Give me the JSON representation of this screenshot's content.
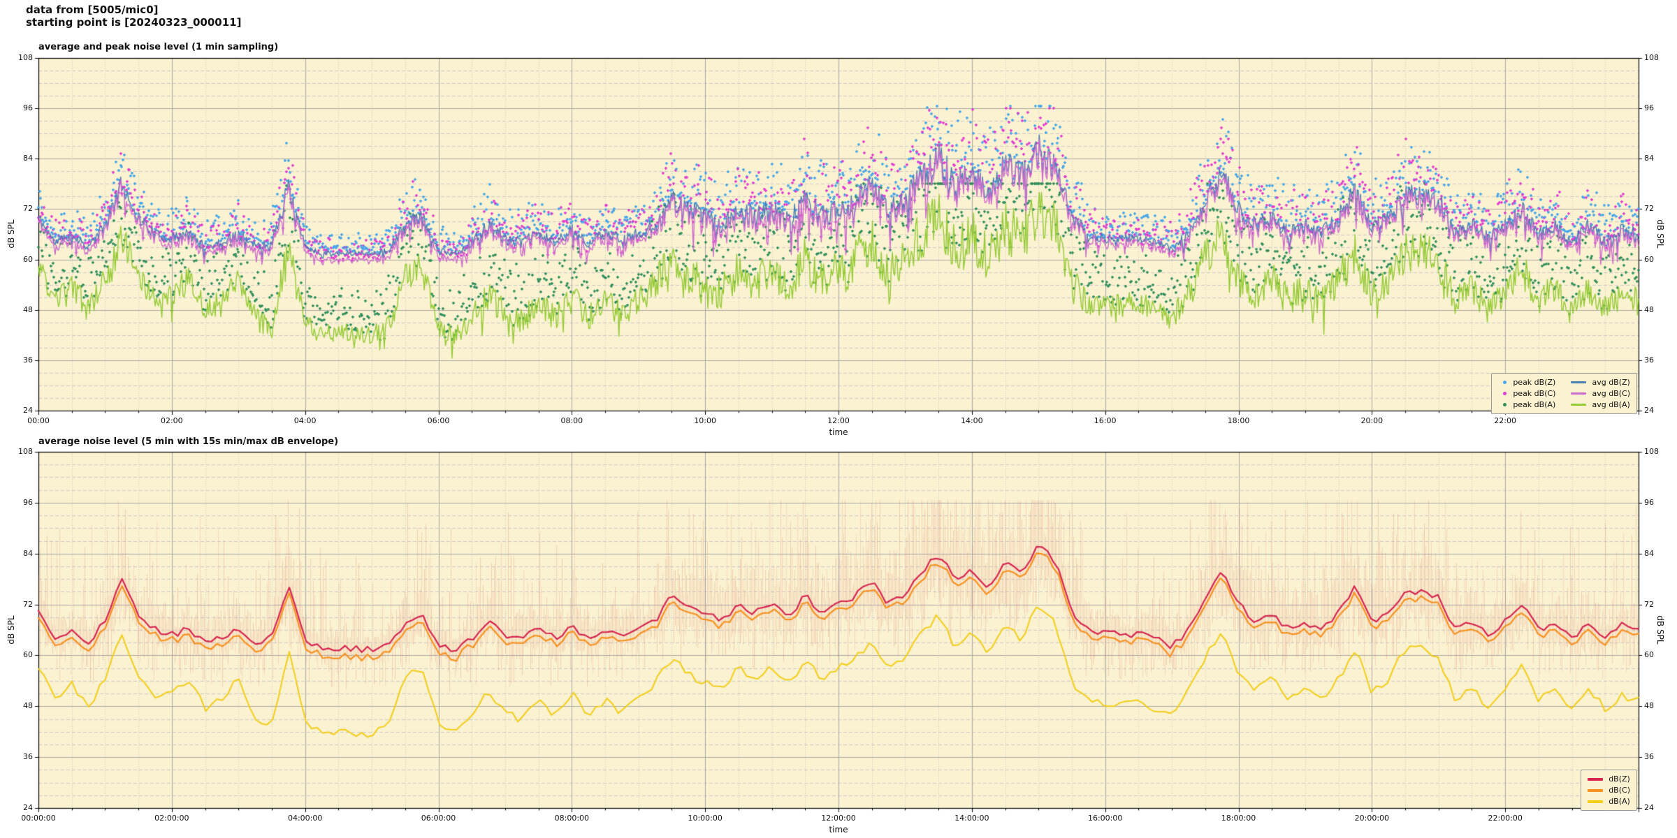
{
  "header": {
    "line1": "data from [5005/mic0]",
    "line2": "starting point is [20240323_000011]"
  },
  "axis": {
    "ylabel": "dB SPL",
    "y_ticks": [
      "24",
      "36",
      "48",
      "60",
      "72",
      "84",
      "96",
      "108"
    ],
    "y_min": 24,
    "y_max": 108
  },
  "top": {
    "title": "average and peak noise level (1 min sampling)",
    "xlabel": "time",
    "x_ticks": [
      "00:00",
      "02:00",
      "04:00",
      "06:00",
      "08:00",
      "10:00",
      "12:00",
      "14:00",
      "16:00",
      "18:00",
      "20:00",
      "22:00"
    ],
    "legend": [
      {
        "label": "peak dB(Z)",
        "marker": "dot",
        "color": "#45a5ea"
      },
      {
        "label": "peak dB(C)",
        "marker": "dot",
        "color": "#e23ad2"
      },
      {
        "label": "peak dB(A)",
        "marker": "dot",
        "color": "#2f8f5b"
      },
      {
        "label": "avg dB(Z)",
        "marker": "line",
        "color": "#4a7fb5"
      },
      {
        "label": "avg dB(C)",
        "marker": "line",
        "color": "#cf6bce"
      },
      {
        "label": "avg dB(A)",
        "marker": "line",
        "color": "#96cb36"
      }
    ]
  },
  "bottom": {
    "title": "average noise level (5 min with 15s min/max dB envelope)",
    "xlabel": "time",
    "x_ticks": [
      "00:00:00",
      "02:00:00",
      "04:00:00",
      "06:00:00",
      "08:00:00",
      "10:00:00",
      "12:00:00",
      "14:00:00",
      "16:00:00",
      "18:00:00",
      "20:00:00",
      "22:00:00"
    ],
    "legend": [
      {
        "label": "dB(Z)",
        "marker": "line",
        "color": "#d62650"
      },
      {
        "label": "dB(C)",
        "marker": "line",
        "color": "#f79222"
      },
      {
        "label": "dB(A)",
        "marker": "line",
        "color": "#f2ce1b"
      }
    ]
  },
  "colors": {
    "axes_background": "#faf2d0",
    "grid_major": "#a9a9a9",
    "grid_minor": "#c9c9c9",
    "frame": "#000000",
    "envelope": "rgba(222,105,95,0.28)"
  },
  "chart_data": [
    {
      "type": "scatter+line",
      "title": "average and peak noise level (1 min sampling)",
      "xlabel": "time",
      "ylabel": "dB SPL",
      "x_unit": "hours",
      "x_range": [
        0,
        24
      ],
      "ylim": [
        24,
        108
      ],
      "grid": "major solid every 12 dB / 2 h, minor dashed every 3 dB / 30 min",
      "legend_position": "lower right",
      "sample_interval_min_estimated": 15,
      "note": "values below are 15-min trend estimates read from the plot; original is 1-min sampling over 24 h",
      "series": [
        {
          "name": "avg dB(Z)",
          "color": "#4a7fb5",
          "style": "line",
          "values": [
            70,
            64,
            66,
            63,
            68,
            78,
            70,
            66,
            65,
            66,
            63,
            64,
            66,
            63,
            64,
            77,
            63,
            61.5,
            61.5,
            61.5,
            61.5,
            62,
            68,
            70,
            62,
            61.5,
            64,
            68,
            65,
            64,
            66,
            64,
            67,
            64,
            66,
            65,
            66,
            68,
            74,
            72,
            70,
            68,
            72,
            70,
            72,
            69,
            74,
            70,
            72,
            74,
            78,
            72,
            74,
            80,
            84,
            78,
            80,
            76,
            82,
            80,
            86,
            82,
            70,
            66,
            65,
            65,
            65,
            64,
            62,
            66,
            74,
            80,
            72,
            68,
            70,
            66,
            68,
            66,
            70,
            76,
            68,
            70,
            75,
            75,
            74,
            66,
            68,
            65,
            68,
            72,
            66,
            68,
            64,
            68,
            64,
            67,
            66
          ]
        },
        {
          "name": "avg dB(C)",
          "color": "#cf6bce",
          "style": "line",
          "relation": "tracks avg dB(Z) about 1-2 dB lower (gap widest in quiet periods)",
          "offset_db_typical": -1.8
        },
        {
          "name": "avg dB(A)",
          "color": "#96cb36",
          "style": "line",
          "values": [
            58,
            50,
            54,
            48,
            55,
            65,
            56,
            50,
            52,
            55,
            48,
            50,
            55,
            46,
            44,
            62,
            45,
            42,
            43,
            42,
            42,
            44,
            56,
            58,
            44,
            42,
            46,
            52,
            47,
            45,
            50,
            46,
            52,
            46,
            50,
            47,
            50,
            54,
            60,
            56,
            54,
            52,
            58,
            54,
            58,
            53,
            60,
            55,
            58,
            60,
            64,
            57,
            60,
            66,
            70,
            62,
            66,
            60,
            68,
            64,
            73,
            68,
            54,
            50,
            49,
            49,
            50,
            48,
            46,
            52,
            60,
            66,
            56,
            52,
            55,
            50,
            53,
            50,
            55,
            62,
            52,
            55,
            62,
            62,
            60,
            50,
            53,
            48,
            52,
            58,
            50,
            53,
            47,
            53,
            48,
            51,
            50
          ]
        },
        {
          "name": "peak dB(Z)",
          "color": "#45a5ea",
          "style": "scatter",
          "relation": "1-min peaks scattered ~1-13 dB above avg dB(Z), up to ~96 dB in busy periods"
        },
        {
          "name": "peak dB(C)",
          "color": "#e23ad2",
          "style": "scatter",
          "relation": "1-min peaks scattered ~1-13 dB above avg dB(C)"
        },
        {
          "name": "peak dB(A)",
          "color": "#2f8f5b",
          "style": "scatter",
          "relation": "1-min peaks scattered ~2-14 dB above avg dB(A)"
        }
      ],
      "activity_spread_db": [
        6,
        4,
        5,
        4,
        6,
        10,
        7,
        5,
        5,
        6,
        4,
        5,
        6,
        5,
        5,
        12,
        3,
        2,
        2,
        2,
        2,
        3,
        8,
        8,
        3,
        2,
        5,
        8,
        6,
        5,
        6,
        5,
        7,
        5,
        6,
        5,
        6,
        8,
        12,
        10,
        10,
        9,
        12,
        10,
        12,
        10,
        13,
        11,
        12,
        13,
        15,
        12,
        13,
        16,
        18,
        15,
        16,
        14,
        17,
        16,
        18,
        16,
        10,
        6,
        4,
        4,
        4,
        4,
        5,
        8,
        12,
        14,
        11,
        9,
        10,
        8,
        9,
        8,
        10,
        12,
        9,
        10,
        12,
        12,
        11,
        7,
        8,
        6,
        8,
        10,
        7,
        8,
        6,
        8,
        6,
        7,
        6
      ]
    },
    {
      "type": "line+band",
      "title": "average noise level (5 min with 15s min/max dB envelope)",
      "xlabel": "time",
      "ylabel": "dB SPL",
      "x_unit": "hours",
      "x_range": [
        0,
        24
      ],
      "ylim": [
        24,
        108
      ],
      "legend_position": "lower right",
      "series": [
        {
          "name": "dB(Z)",
          "color": "#d62650",
          "style": "line",
          "values_source": "same measurement as chart 0 'avg dB(Z)' (5-min average)"
        },
        {
          "name": "dB(C)",
          "color": "#f79222",
          "style": "line",
          "relation": "1.5-4 dB below dB(Z)"
        },
        {
          "name": "dB(A)",
          "color": "#f2ce1b",
          "style": "line",
          "values_source": "same measurement as chart 0 'avg dB(A)' (5-min average)"
        },
        {
          "name": "15s min/max envelope",
          "color": "rgba(222,105,95,0.28)",
          "style": "vertical band around dB(Z)",
          "relation": "spread given by activity_spread_db of chart 0, tallest spikes to ~96 dB between 13:00 and 15:30"
        }
      ]
    }
  ]
}
